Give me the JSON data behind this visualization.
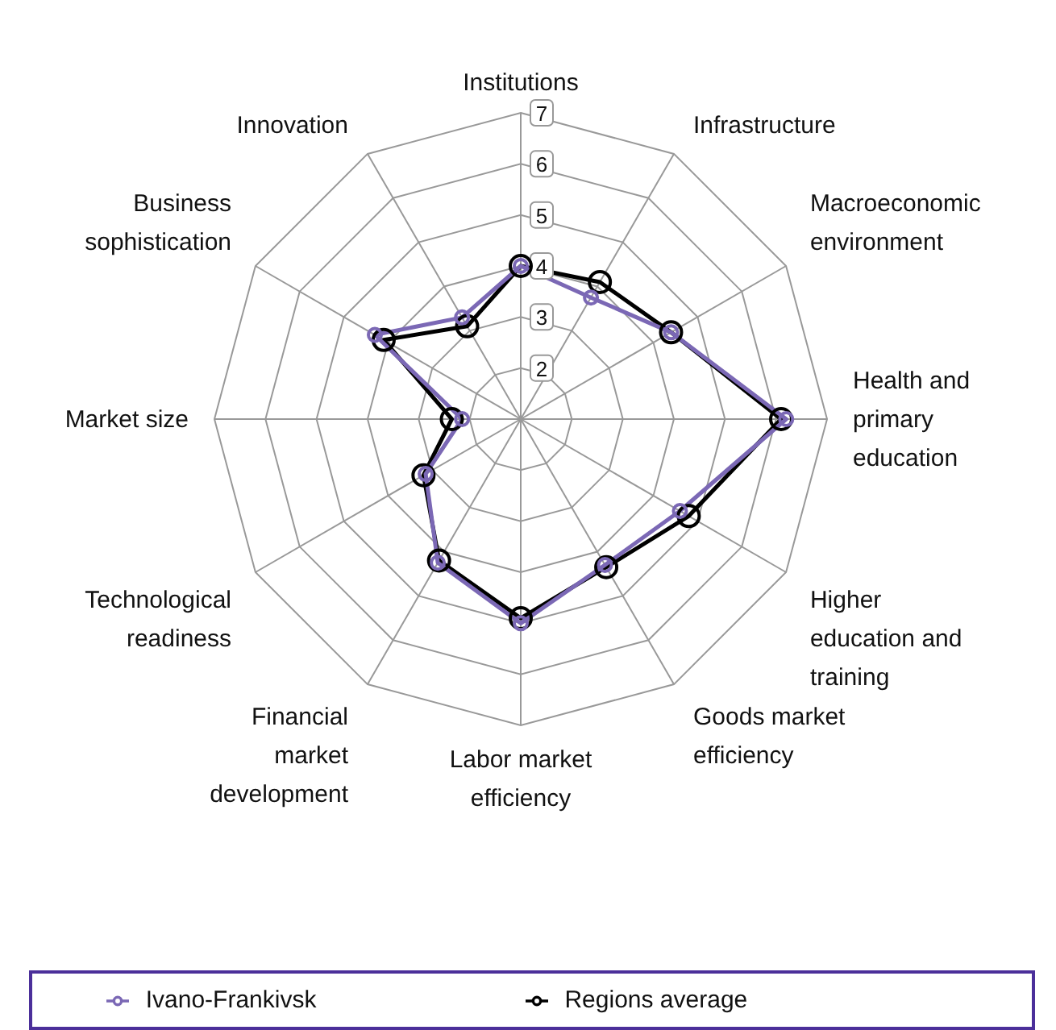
{
  "chart_data": {
    "type": "radar",
    "categories": [
      "Institutions",
      "Infrastructure",
      "Macroeconomic environment",
      "Health and primary education",
      "Higher education and training",
      "Goods market efficiency",
      "Labor market efficiency",
      "Financial market development",
      "Technological readiness",
      "Market size",
      "Business sophistication",
      "Innovation"
    ],
    "series": [
      {
        "name": "Ivano-Frankivsk",
        "color": "#7b68b5",
        "values": [
          4.0,
          3.75,
          4.4,
          6.2,
          4.6,
          4.3,
          5.0,
          4.25,
          3.15,
          2.15,
          4.3,
          3.3
        ]
      },
      {
        "name": "Regions average",
        "color": "#000000",
        "values": [
          4.0,
          4.1,
          4.4,
          6.1,
          4.8,
          4.35,
          4.9,
          4.2,
          3.2,
          2.35,
          4.1,
          3.1
        ]
      }
    ],
    "ylim": [
      1,
      7
    ],
    "yticks": [
      2,
      3,
      4,
      5,
      6,
      7
    ],
    "grid": true,
    "legend": "bottom",
    "marker": "circle"
  }
}
